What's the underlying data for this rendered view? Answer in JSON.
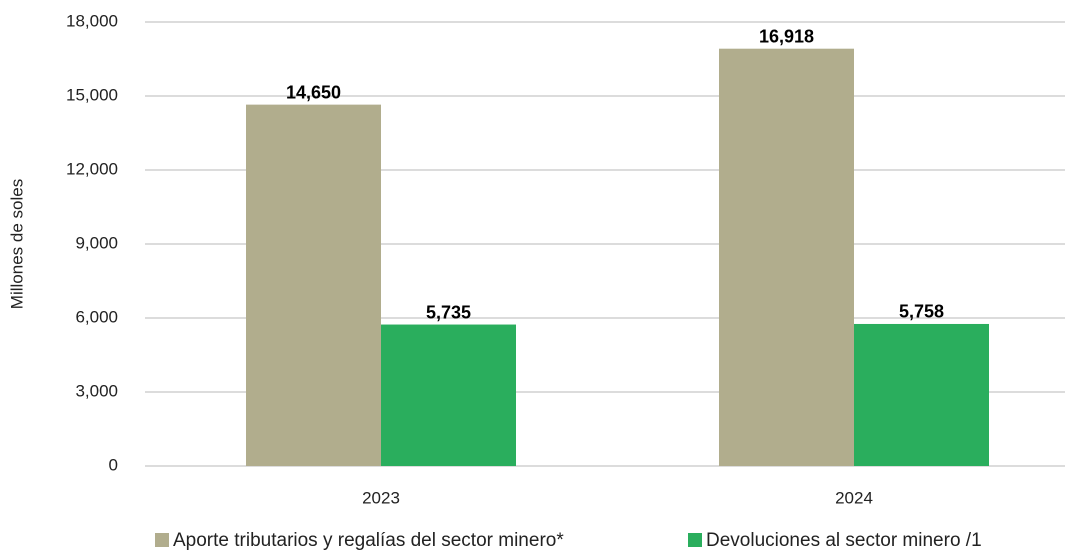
{
  "chart_data": {
    "type": "bar",
    "y_label": "Millones de soles",
    "categories": [
      "2023",
      "2024"
    ],
    "series": [
      {
        "name": "Aporte tributarios y regalías del sector minero*",
        "color": "#b1ad8d",
        "values": [
          14650,
          16918
        ],
        "value_labels": [
          "14,650",
          "16,918"
        ]
      },
      {
        "name": "Devoluciones al sector minero /1",
        "color": "#2aae5d",
        "values": [
          5735,
          5758
        ],
        "value_labels": [
          "5,735",
          "5,758"
        ]
      }
    ],
    "ylim": [
      0,
      18000
    ],
    "yticks": [
      0,
      {
        "value": 3000,
        "label": "3,000"
      },
      {
        "value": 6000,
        "label": "6,000"
      },
      {
        "value": 9000,
        "label": "9,000"
      },
      {
        "value": 12000,
        "label": "12,000"
      },
      {
        "value": 15000,
        "label": "15,000"
      },
      {
        "value": 18000,
        "label": "18,000"
      }
    ],
    "grid": true,
    "legend": "bottom"
  }
}
